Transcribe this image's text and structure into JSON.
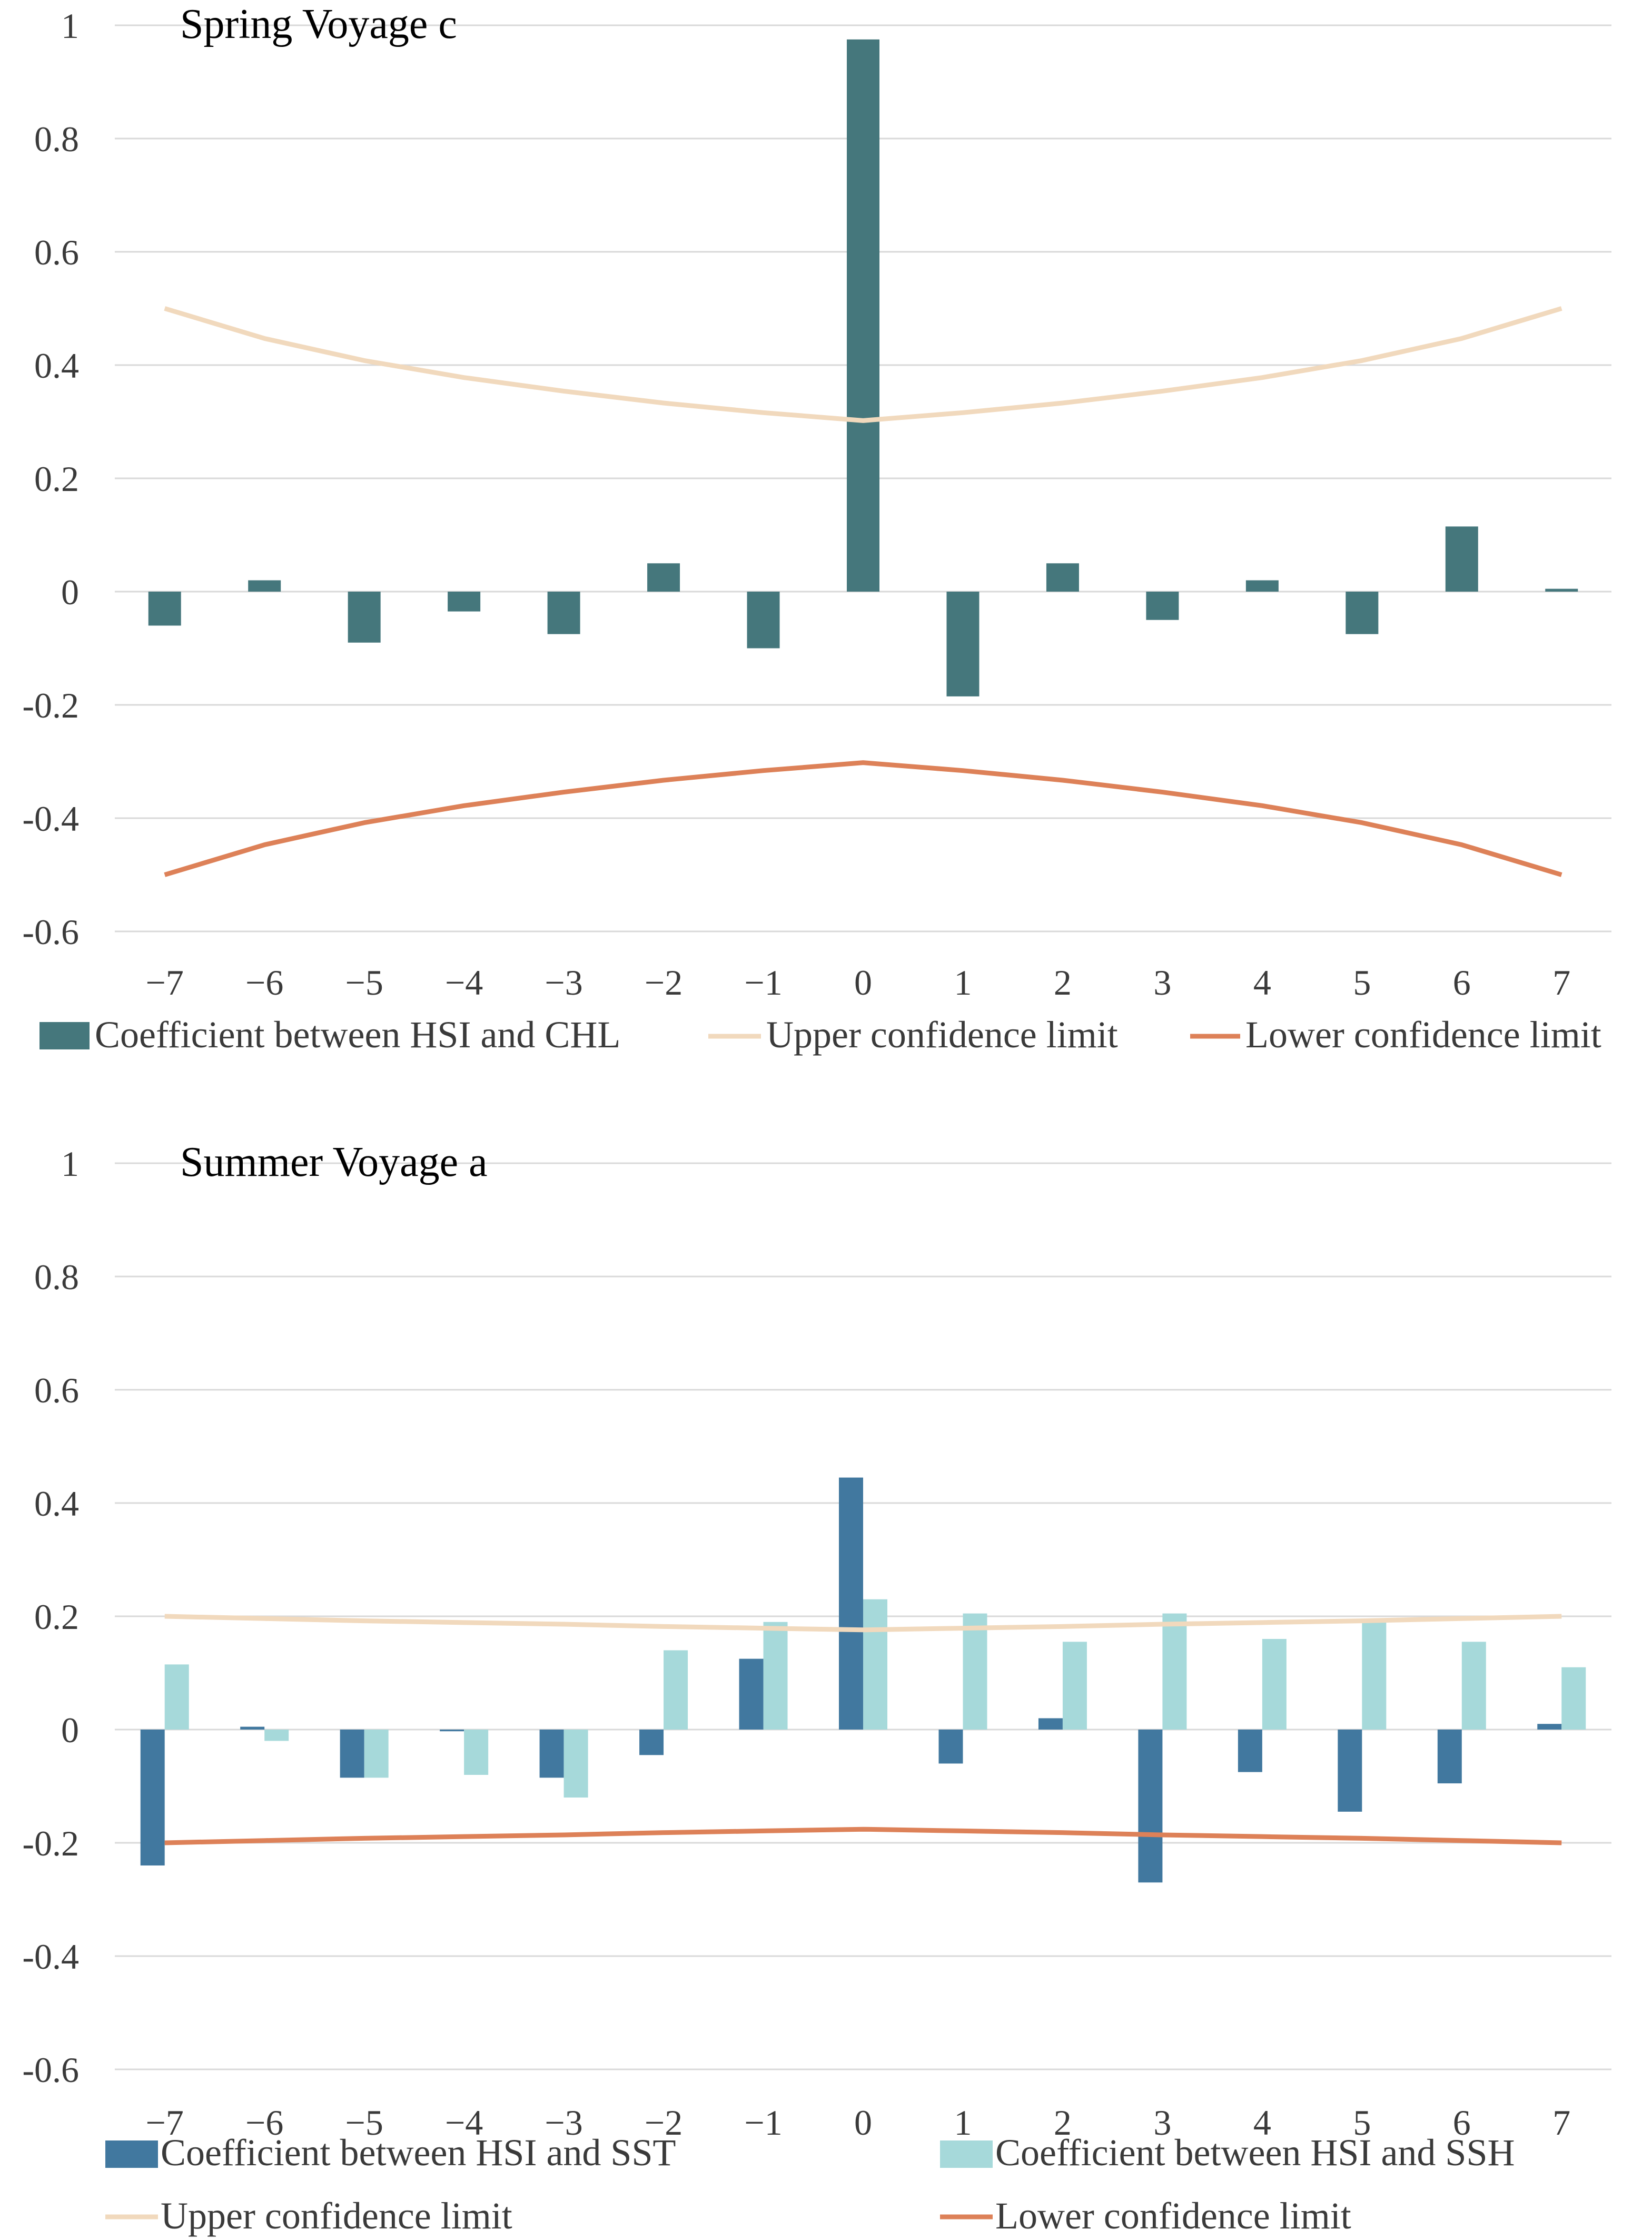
{
  "chart_data": [
    {
      "type": "bar",
      "title": "Spring Voyage c",
      "xlabel": "",
      "ylabel": "",
      "categories": [
        "−7",
        "−6",
        "−5",
        "−4",
        "−3",
        "−2",
        "−1",
        "0",
        "1",
        "2",
        "3",
        "4",
        "5",
        "6",
        "7"
      ],
      "ylim": [
        -0.6,
        1
      ],
      "yticks": [
        -0.6,
        -0.4,
        -0.2,
        0,
        0.2,
        0.4,
        0.6,
        0.8,
        1
      ],
      "ytick_labels": [
        "-0.6",
        "-0.4",
        "-0.2",
        "0",
        "0.2",
        "0.4",
        "0.6",
        "0.8",
        "1"
      ],
      "grid": true,
      "series": [
        {
          "name": "Coefficient between HSI and CHL",
          "kind": "bar",
          "color": "#45777c",
          "values": [
            -0.06,
            0.02,
            -0.09,
            -0.035,
            -0.075,
            0.05,
            -0.1,
            0.975,
            -0.185,
            0.05,
            -0.05,
            0.02,
            -0.075,
            0.115,
            0.005
          ]
        },
        {
          "name": "Upper confidence limit",
          "kind": "line",
          "color": "#f1d9bd",
          "values": [
            0.5,
            0.447,
            0.408,
            0.378,
            0.354,
            0.333,
            0.316,
            0.302,
            0.316,
            0.333,
            0.354,
            0.378,
            0.408,
            0.447,
            0.5
          ]
        },
        {
          "name": "Lower confidence limit",
          "kind": "line",
          "color": "#dd8158",
          "values": [
            -0.5,
            -0.447,
            -0.408,
            -0.378,
            -0.354,
            -0.333,
            -0.316,
            -0.302,
            -0.316,
            -0.333,
            -0.354,
            -0.378,
            -0.408,
            -0.447,
            -0.5
          ]
        }
      ],
      "legend": [
        "Coefficient between HSI and CHL",
        "Upper confidence limit",
        "Lower confidence limit"
      ]
    },
    {
      "type": "bar",
      "title": "Summer Voyage a",
      "xlabel": "",
      "ylabel": "",
      "categories": [
        "−7",
        "−6",
        "−5",
        "−4",
        "−3",
        "−2",
        "−1",
        "0",
        "1",
        "2",
        "3",
        "4",
        "5",
        "6",
        "7"
      ],
      "ylim": [
        -0.6,
        1
      ],
      "yticks": [
        -0.6,
        -0.4,
        -0.2,
        0,
        0.2,
        0.4,
        0.6,
        0.8,
        1
      ],
      "ytick_labels": [
        "-0.6",
        "-0.4",
        "-0.2",
        "0",
        "0.2",
        "0.4",
        "0.6",
        "0.8",
        "1"
      ],
      "grid": true,
      "series": [
        {
          "name": "Coefficient between HSI and SST",
          "kind": "bar",
          "color": "#41789f",
          "values": [
            -0.24,
            0.005,
            -0.085,
            -0.003,
            -0.085,
            -0.045,
            0.125,
            0.445,
            -0.06,
            0.02,
            -0.27,
            -0.075,
            -0.145,
            -0.095,
            0.01
          ]
        },
        {
          "name": "Coefficient between HSI and SSH",
          "kind": "bar",
          "color": "#a6d9da",
          "values": [
            0.115,
            -0.02,
            -0.085,
            -0.08,
            -0.12,
            0.14,
            0.19,
            0.23,
            0.205,
            0.155,
            0.205,
            0.16,
            0.195,
            0.155,
            0.11
          ]
        },
        {
          "name": "Upper confidence limit",
          "kind": "line",
          "color": "#f1d9bd",
          "values": [
            0.2,
            0.196,
            0.192,
            0.189,
            0.186,
            0.182,
            0.179,
            0.176,
            0.179,
            0.182,
            0.186,
            0.189,
            0.192,
            0.196,
            0.2
          ]
        },
        {
          "name": "Lower confidence limit",
          "kind": "line",
          "color": "#dd8158",
          "values": [
            -0.2,
            -0.196,
            -0.192,
            -0.189,
            -0.186,
            -0.182,
            -0.179,
            -0.176,
            -0.179,
            -0.182,
            -0.186,
            -0.189,
            -0.192,
            -0.196,
            -0.2
          ]
        }
      ],
      "legend": [
        "Coefficient between HSI and SST",
        "Coefficient between HSI and SSH",
        "Upper confidence limit",
        "Lower confidence limit"
      ]
    }
  ]
}
